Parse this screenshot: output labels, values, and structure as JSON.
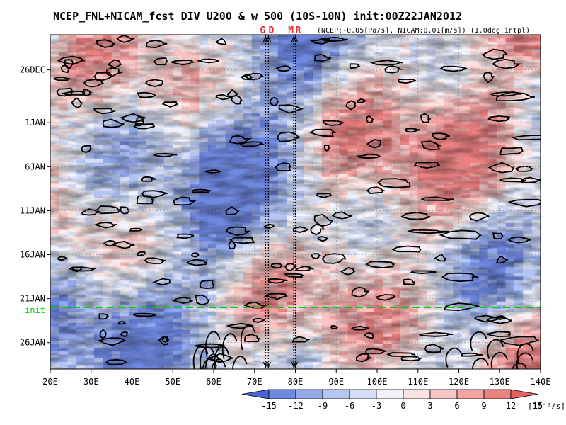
{
  "chart_data": {
    "type": "heatmap",
    "title": "NCEP_FNL+NICAM_fcst DIV U200 & w 500 (10S-10N) init:00Z22JAN2012",
    "subtitle": "(NCEP:-0.05[Pa/s], NICAM:0.01[m/s]) (1.0deg intpl)",
    "xaxis": {
      "range": [
        20,
        140
      ],
      "ticks": [
        20,
        30,
        40,
        50,
        60,
        70,
        80,
        90,
        100,
        110,
        120,
        130,
        140
      ],
      "tick_labels": [
        "20E",
        "30E",
        "40E",
        "50E",
        "60E",
        "70E",
        "80E",
        "90E",
        "100E",
        "110E",
        "120E",
        "130E",
        "140E"
      ]
    },
    "yaxis": {
      "range_days": [
        "22DEC2011",
        "29JAN2012"
      ],
      "ticks": [
        {
          "date": "26DEC2011",
          "label": "26DEC"
        },
        {
          "date": "1JAN2012",
          "label": "1JAN"
        },
        {
          "date": "6JAN2012",
          "label": "6JAN"
        },
        {
          "date": "11JAN2012",
          "label": "11JAN"
        },
        {
          "date": "16JAN2012",
          "label": "16JAN"
        },
        {
          "date": "21JAN2012",
          "label": "21JAN"
        },
        {
          "date": "26JAN2012",
          "label": "26JAN"
        }
      ],
      "direction": "time increases downward"
    },
    "init_line": {
      "label": "init",
      "date": "22JAN2012",
      "color": "#00cc00"
    },
    "markers": [
      {
        "label": "G",
        "lon": 72.7
      },
      {
        "label": "D",
        "lon": 73.4
      },
      {
        "label": "M",
        "lon": 79.6
      },
      {
        "label": "R",
        "lon": 80.0
      }
    ],
    "colorbar": {
      "tick_labels": [
        "-15",
        "-12",
        "-9",
        "-6",
        "-3",
        "0",
        "3",
        "6",
        "9",
        "12",
        "15"
      ],
      "unit": "[10⁻⁶/s]",
      "colors": [
        "#4a66d6",
        "#6f88e0",
        "#93a9ea",
        "#b4c5f1",
        "#d6def7",
        "#f2f2fb",
        "#fbe2e2",
        "#f8c4c4",
        "#f3a3a3",
        "#ec8181",
        "#e45f5f"
      ]
    },
    "grid": true
  }
}
